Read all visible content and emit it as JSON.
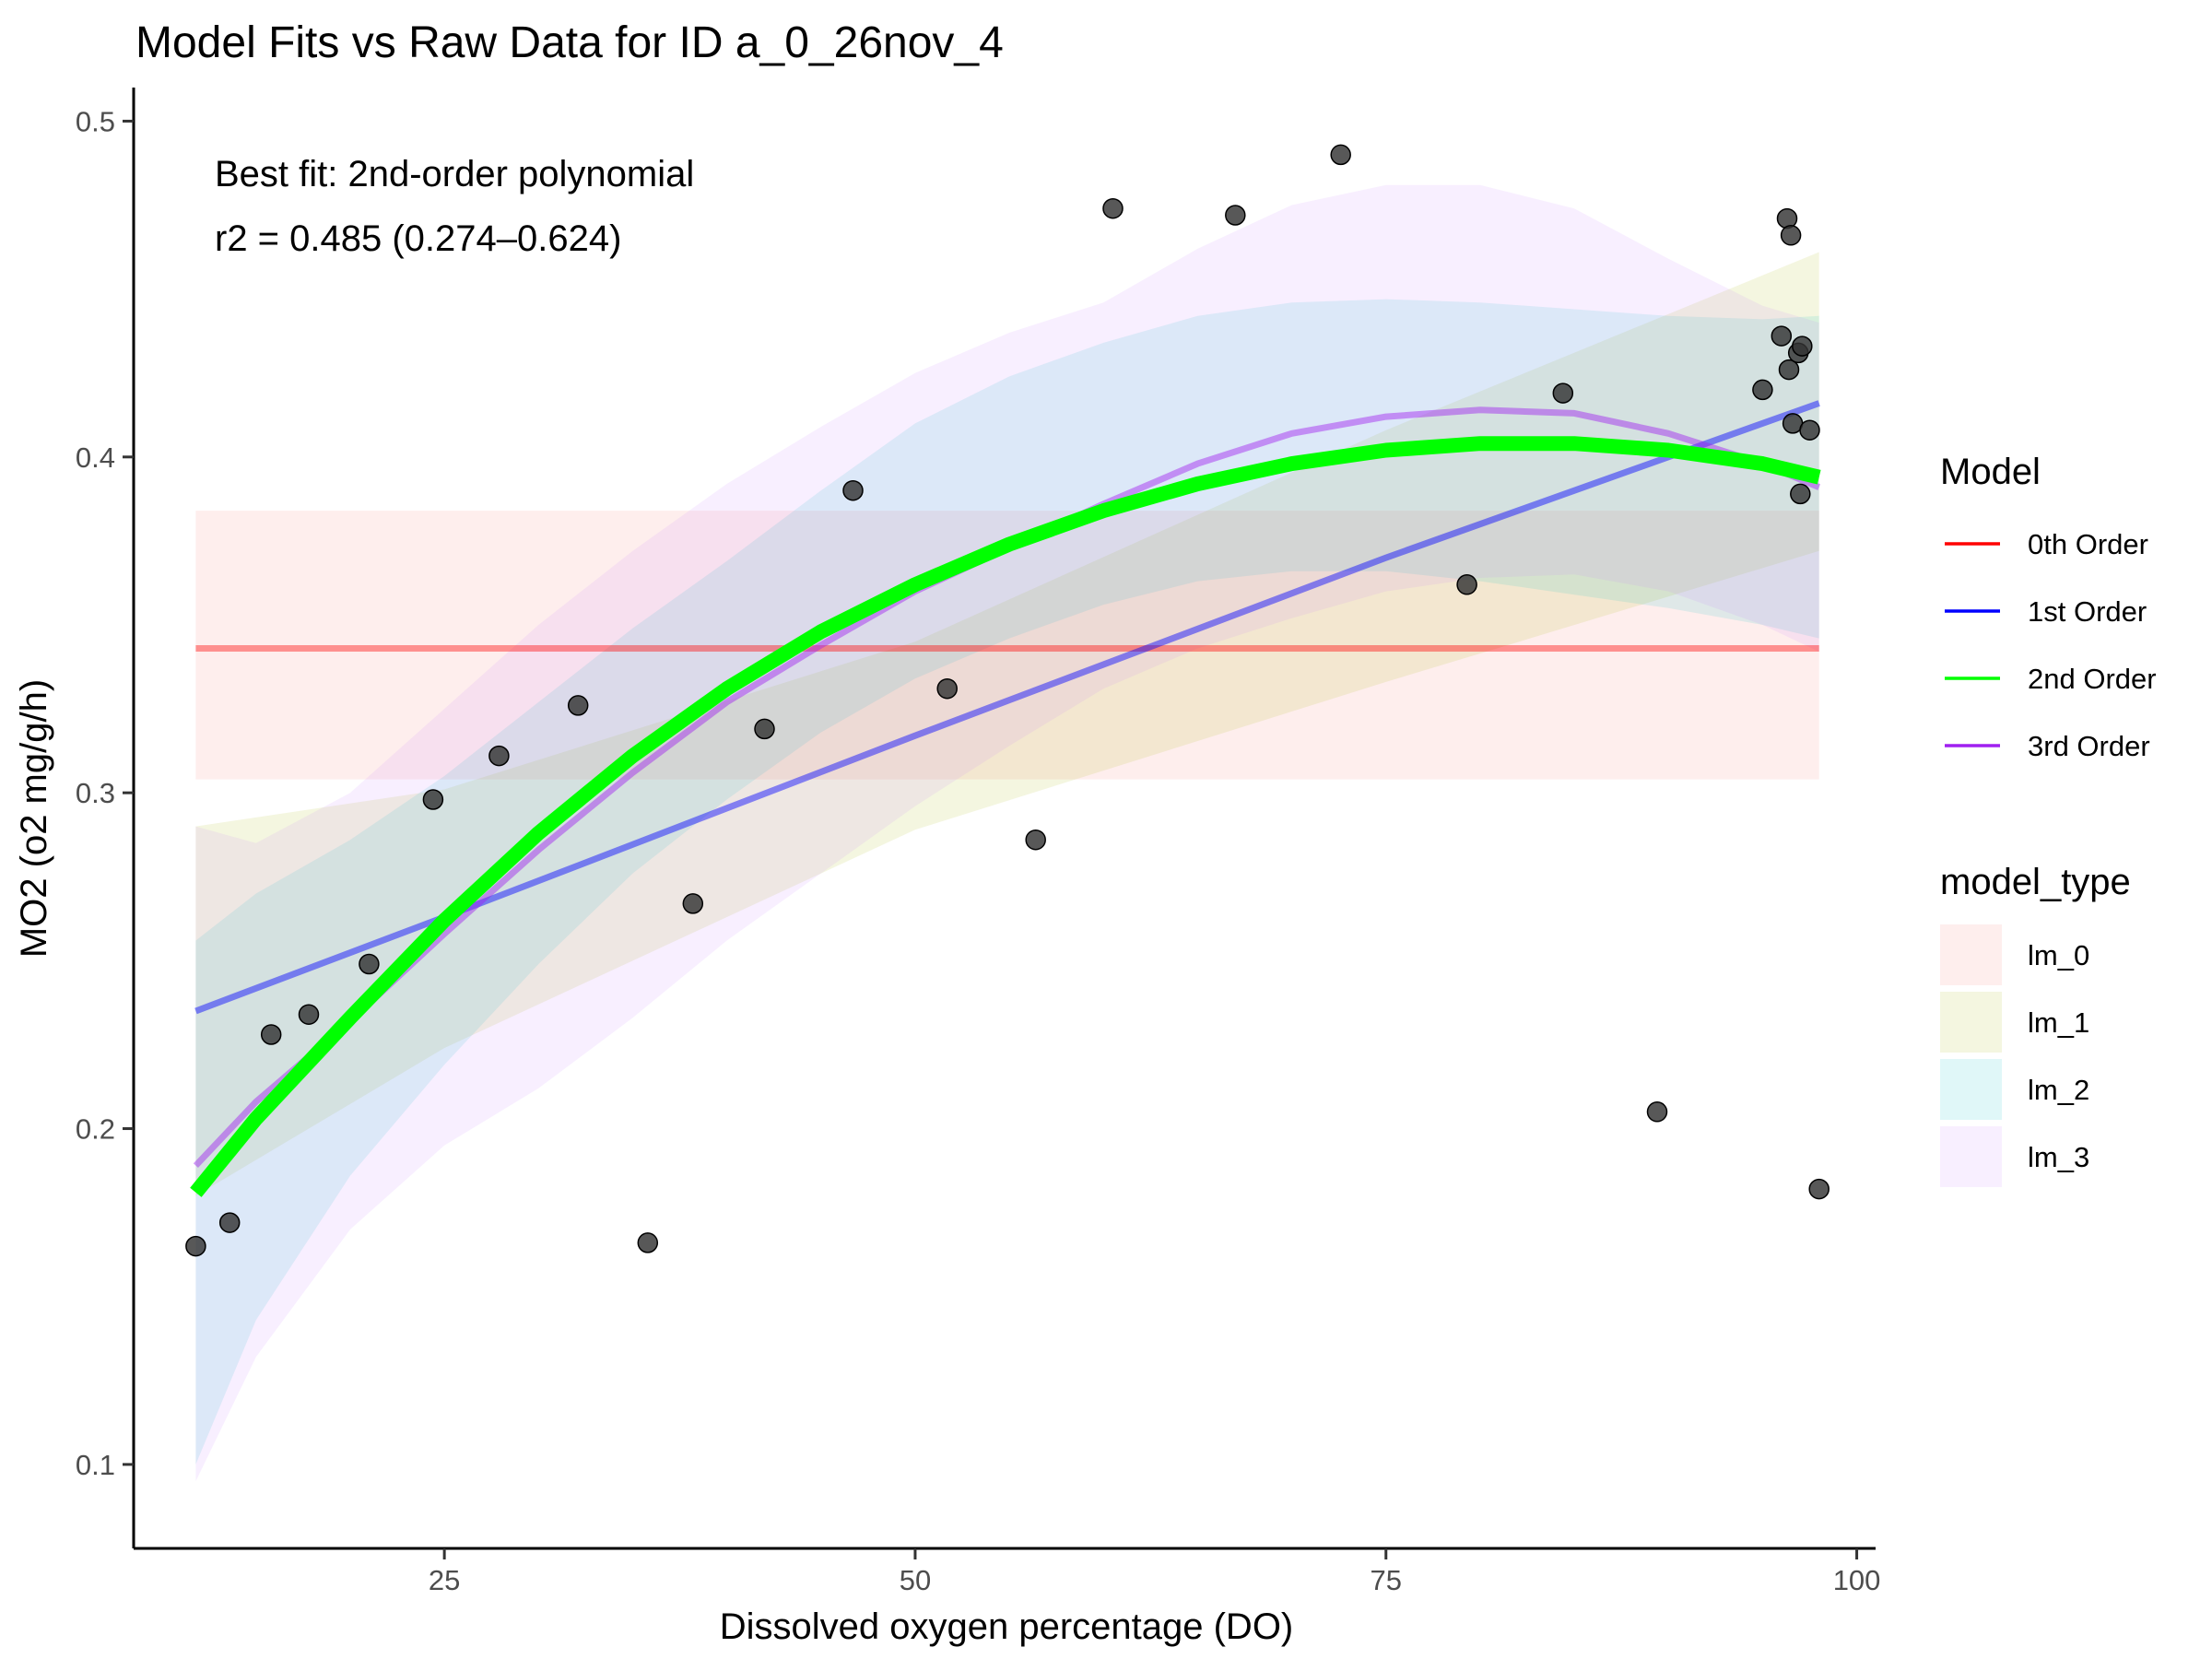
{
  "chart_data": {
    "type": "scatter",
    "title": "Model Fits vs Raw Data for ID a_0_26nov_4",
    "xlabel": "Dissolved oxygen percentage (DO)",
    "ylabel": "MO2 (o2 mg/g/h)",
    "xlim": [
      8.5,
      101
    ],
    "ylim": [
      0.075,
      0.51
    ],
    "xticks": [
      25,
      50,
      75,
      100
    ],
    "yticks": [
      0.1,
      0.2,
      0.3,
      0.4,
      0.5
    ],
    "grid": false,
    "annotations": [
      "Best fit: 2nd-order polynomial",
      "r2 = 0.485 (0.274–0.624)"
    ],
    "points": {
      "x": [
        11.8,
        13.6,
        15.8,
        17.8,
        21.0,
        24.4,
        27.9,
        32.1,
        35.8,
        38.2,
        42.0,
        46.7,
        51.7,
        56.4,
        60.5,
        67.0,
        72.6,
        79.3,
        84.4,
        89.4,
        95.0,
        96.0,
        96.3,
        96.4,
        96.5,
        96.6,
        96.9,
        97.0,
        97.1,
        97.5,
        98.0
      ],
      "y": [
        0.165,
        0.172,
        0.228,
        0.234,
        0.249,
        0.298,
        0.311,
        0.326,
        0.166,
        0.267,
        0.319,
        0.39,
        0.331,
        0.286,
        0.474,
        0.472,
        0.49,
        0.362,
        0.419,
        0.205,
        0.42,
        0.436,
        0.471,
        0.426,
        0.466,
        0.41,
        0.431,
        0.389,
        0.433,
        0.408,
        0.182
      ]
    },
    "series": [
      {
        "name": "0th Order",
        "model_type": "lm_0",
        "color": "#ff0000",
        "fill": "#f8766d",
        "x": [
          11.8,
          98.0
        ],
        "y": [
          0.343,
          0.343
        ],
        "lower": [
          0.304,
          0.304
        ],
        "upper": [
          0.384,
          0.384
        ]
      },
      {
        "name": "1st Order",
        "model_type": "lm_1",
        "color": "#0000ff",
        "fill": "#a3b300",
        "x": [
          11.8,
          25,
          50,
          75,
          98.0
        ],
        "y": [
          0.235,
          0.263,
          0.317,
          0.37,
          0.416
        ],
        "lower": [
          0.18,
          0.224,
          0.289,
          0.333,
          0.372
        ],
        "upper": [
          0.29,
          0.301,
          0.345,
          0.408,
          0.461
        ]
      },
      {
        "name": "2nd Order",
        "model_type": "lm_2",
        "color": "#00ff00",
        "fill": "#00bfc4",
        "x": [
          11.8,
          15,
          20,
          25,
          30,
          35,
          40,
          45,
          50,
          55,
          60,
          65,
          70,
          75,
          80,
          85,
          90,
          95,
          98.0
        ],
        "y": [
          0.181,
          0.203,
          0.233,
          0.262,
          0.288,
          0.311,
          0.331,
          0.348,
          0.362,
          0.374,
          0.384,
          0.392,
          0.398,
          0.402,
          0.404,
          0.404,
          0.402,
          0.398,
          0.394
        ],
        "lower": [
          0.1,
          0.143,
          0.186,
          0.219,
          0.249,
          0.276,
          0.298,
          0.318,
          0.334,
          0.346,
          0.356,
          0.363,
          0.366,
          0.366,
          0.363,
          0.359,
          0.355,
          0.35,
          0.346
        ],
        "upper": [
          0.256,
          0.27,
          0.286,
          0.305,
          0.327,
          0.349,
          0.369,
          0.39,
          0.41,
          0.424,
          0.434,
          0.442,
          0.446,
          0.447,
          0.446,
          0.444,
          0.442,
          0.441,
          0.442
        ]
      },
      {
        "name": "3rd Order",
        "model_type": "lm_3",
        "color": "#a020f0",
        "fill": "#c77cff",
        "x": [
          11.8,
          15,
          20,
          25,
          30,
          35,
          40,
          45,
          50,
          55,
          60,
          65,
          70,
          75,
          80,
          85,
          90,
          95,
          98.0
        ],
        "y": [
          0.189,
          0.208,
          0.232,
          0.258,
          0.283,
          0.306,
          0.327,
          0.344,
          0.36,
          0.373,
          0.386,
          0.398,
          0.407,
          0.412,
          0.414,
          0.413,
          0.407,
          0.398,
          0.391
        ],
        "lower": [
          0.095,
          0.132,
          0.17,
          0.195,
          0.212,
          0.233,
          0.256,
          0.276,
          0.296,
          0.314,
          0.331,
          0.343,
          0.352,
          0.36,
          0.364,
          0.365,
          0.36,
          0.35,
          0.342
        ],
        "upper": [
          0.29,
          0.285,
          0.3,
          0.325,
          0.35,
          0.372,
          0.392,
          0.409,
          0.425,
          0.437,
          0.446,
          0.462,
          0.475,
          0.481,
          0.481,
          0.474,
          0.459,
          0.445,
          0.44
        ]
      }
    ],
    "legend": {
      "placement": "right",
      "model_title": "Model",
      "model_items": [
        "0th Order",
        "1st Order",
        "2nd Order",
        "3rd Order"
      ],
      "type_title": "model_type",
      "type_items": [
        "lm_0",
        "lm_1",
        "lm_2",
        "lm_3"
      ]
    }
  }
}
